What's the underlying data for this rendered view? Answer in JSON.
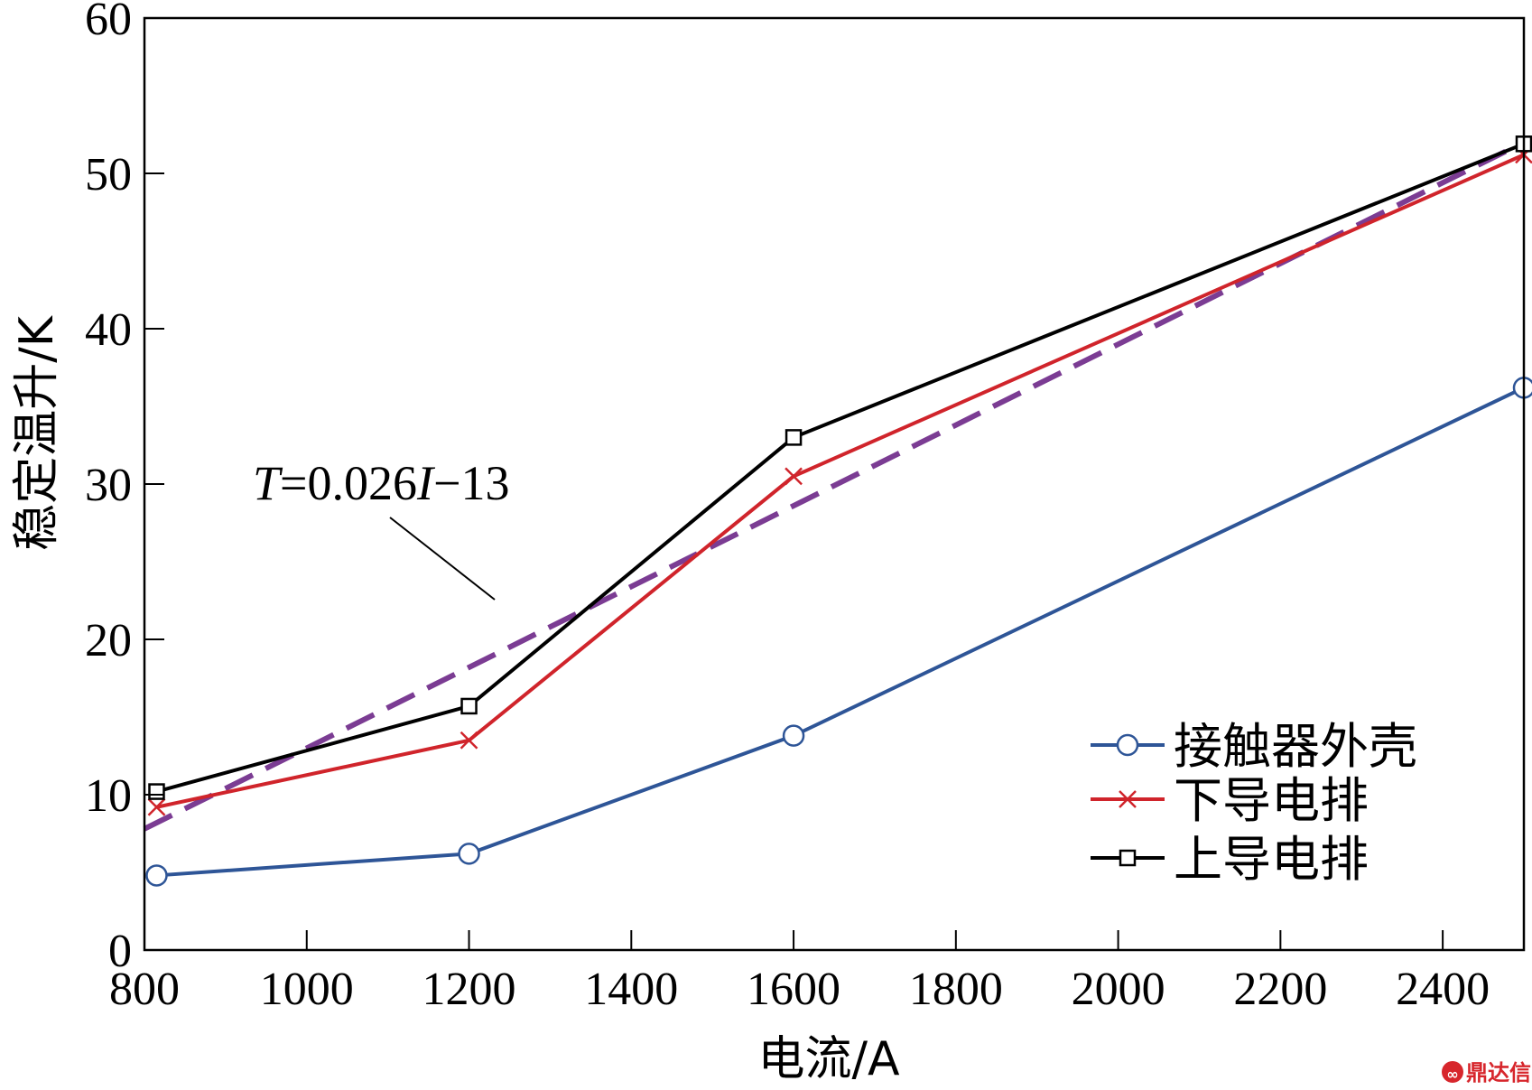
{
  "chart_data": {
    "type": "line",
    "xlabel": "电流/A",
    "ylabel": "稳定温升/K",
    "xlim": [
      800,
      2500
    ],
    "ylim": [
      0,
      60
    ],
    "xticks": [
      800,
      1000,
      1200,
      1400,
      1600,
      1800,
      2000,
      2200,
      2400
    ],
    "yticks": [
      0,
      10,
      20,
      30,
      40,
      50,
      60
    ],
    "grid": false,
    "legend_position": "bottom-right",
    "series": [
      {
        "name": "接触器外壳",
        "color": "#2e5597",
        "marker": "circle",
        "x": [
          815,
          1200,
          1600,
          2500
        ],
        "y": [
          4.8,
          6.2,
          13.8,
          36.2
        ]
      },
      {
        "name": "下导电排",
        "color": "#d0242b",
        "marker": "x",
        "x": [
          815,
          1200,
          1600,
          2500
        ],
        "y": [
          9.2,
          13.5,
          30.5,
          51.2
        ]
      },
      {
        "name": "上导电排",
        "color": "#000000",
        "marker": "square",
        "x": [
          815,
          1200,
          1600,
          2500
        ],
        "y": [
          10.2,
          15.7,
          33.0,
          51.9
        ]
      }
    ],
    "fit_line": {
      "label_T": "T",
      "label_mid": "=0.026",
      "label_I": "I",
      "label_end": "−13",
      "color": "#7b3c93",
      "style": "dashed",
      "x": [
        800,
        2500
      ],
      "slope": 0.026,
      "intercept": -13
    }
  },
  "watermark": {
    "text": "鼎达信",
    "icon": "logo-icon"
  }
}
